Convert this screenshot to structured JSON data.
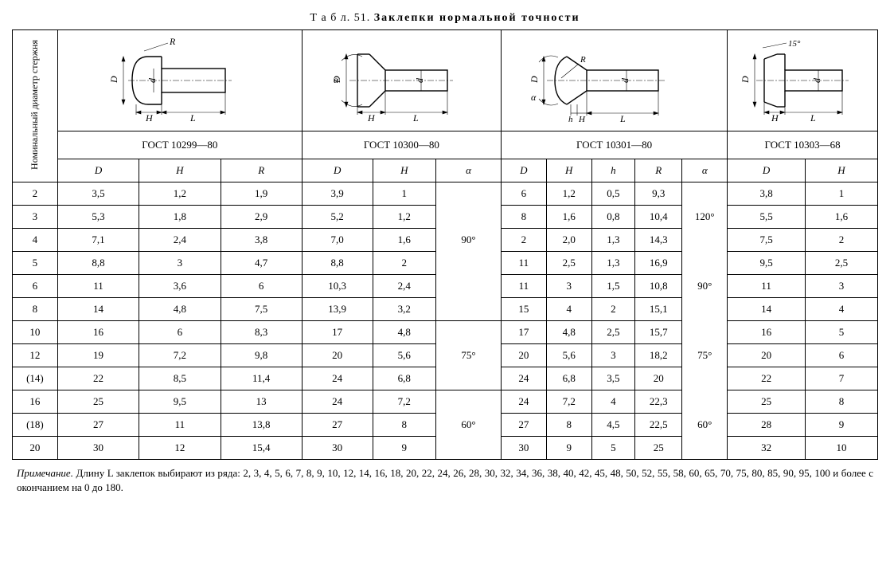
{
  "title_prefix": "Т а б л. 51.",
  "title_text": "Заклепки нормальной точности",
  "row_header_label": "Номинальный диаметр стержня",
  "standards": [
    {
      "label": "ГОСТ 10299—80",
      "cols": [
        "D",
        "H",
        "R"
      ]
    },
    {
      "label": "ГОСТ 10300—80",
      "cols": [
        "D",
        "H",
        "α"
      ]
    },
    {
      "label": "ГОСТ 10301—80",
      "cols": [
        "D",
        "H",
        "h",
        "R",
        "α"
      ]
    },
    {
      "label": "ГОСТ 10303—68",
      "cols": [
        "D",
        "H"
      ]
    }
  ],
  "nominal": [
    "2",
    "3",
    "4",
    "5",
    "6",
    "8",
    "10",
    "12",
    "(14)",
    "16",
    "(18)",
    "20"
  ],
  "g1": {
    "D": [
      "3,5",
      "5,3",
      "7,1",
      "8,8",
      "11",
      "14",
      "16",
      "19",
      "22",
      "25",
      "27",
      "30"
    ],
    "H": [
      "1,2",
      "1,8",
      "2,4",
      "3",
      "3,6",
      "4,8",
      "6",
      "7,2",
      "8,5",
      "9,5",
      "11",
      "12"
    ],
    "R": [
      "1,9",
      "2,9",
      "3,8",
      "4,7",
      "6",
      "7,5",
      "8,3",
      "9,8",
      "11,4",
      "13",
      "13,8",
      "15,4"
    ]
  },
  "g2": {
    "D": [
      "3,9",
      "5,2",
      "7,0",
      "8,8",
      "10,3",
      "13,9",
      "17",
      "20",
      "24",
      "24",
      "27",
      "30"
    ],
    "H": [
      "1",
      "1,2",
      "1,6",
      "2",
      "2,4",
      "3,2",
      "4,8",
      "5,6",
      "6,8",
      "7,2",
      "8",
      "9"
    ],
    "alpha_spans": [
      {
        "rows": 6,
        "text": "90°"
      },
      {
        "rows": 3,
        "text": "75°"
      },
      {
        "rows": 3,
        "text": "60°"
      }
    ]
  },
  "g3": {
    "D": [
      "6",
      "8",
      "2",
      "11",
      "11",
      "15",
      "17",
      "20",
      "24",
      "24",
      "27",
      "30"
    ],
    "H": [
      "1,2",
      "1,6",
      "2,0",
      "2,5",
      "3",
      "4",
      "4,8",
      "5,6",
      "6,8",
      "7,2",
      "8",
      "9"
    ],
    "h": [
      "0,5",
      "0,8",
      "1,3",
      "1,3",
      "1,5",
      "2",
      "2,5",
      "3",
      "3,5",
      "4",
      "4,5",
      "5"
    ],
    "R": [
      "9,3",
      "10,4",
      "14,3",
      "16,9",
      "10,8",
      "15,1",
      "15,7",
      "18,2",
      "20",
      "22,3",
      "22,5",
      "25"
    ],
    "alpha_spans": [
      {
        "rows": 4,
        "text": "120°"
      },
      {
        "rows": 4,
        "text": "90°"
      },
      {
        "rows": 4,
        "text": "75°",
        "override": {
          "2": "75°",
          "3": "60°"
        }
      }
    ],
    "alpha_values": [
      "",
      "120°",
      "",
      "",
      "90°",
      "",
      "",
      "75°",
      "",
      "",
      "60°",
      ""
    ]
  },
  "g4": {
    "D": [
      "3,8",
      "5,5",
      "7,5",
      "9,5",
      "11",
      "14",
      "16",
      "20",
      "22",
      "25",
      "28",
      "32"
    ],
    "H": [
      "1",
      "1,6",
      "2",
      "2,5",
      "3",
      "4",
      "5",
      "6",
      "7",
      "8",
      "9",
      "10"
    ]
  },
  "alpha2_labels": {
    "a": "90°",
    "b": "75°",
    "c": "60°"
  },
  "note_lead": "Примечание.",
  "note_body": " Длину L заклепок выбирают из ряда: 2, 3, 4, 5, 6, 7, 8, 9, 10, 12, 14, 16, 18, 20, 22, 24, 26, 28, 30, 32, 34, 36, 38, 40, 42, 45, 48, 50, 52, 55, 58, 60, 65, 70, 75, 80, 85, 90, 95, 100 и более с окончанием на 0 до 180.",
  "diagram_labels": {
    "R": "R",
    "D": "D",
    "d": "d",
    "H": "H",
    "L": "L",
    "alpha": "α",
    "h": "h",
    "angle": "15°"
  }
}
